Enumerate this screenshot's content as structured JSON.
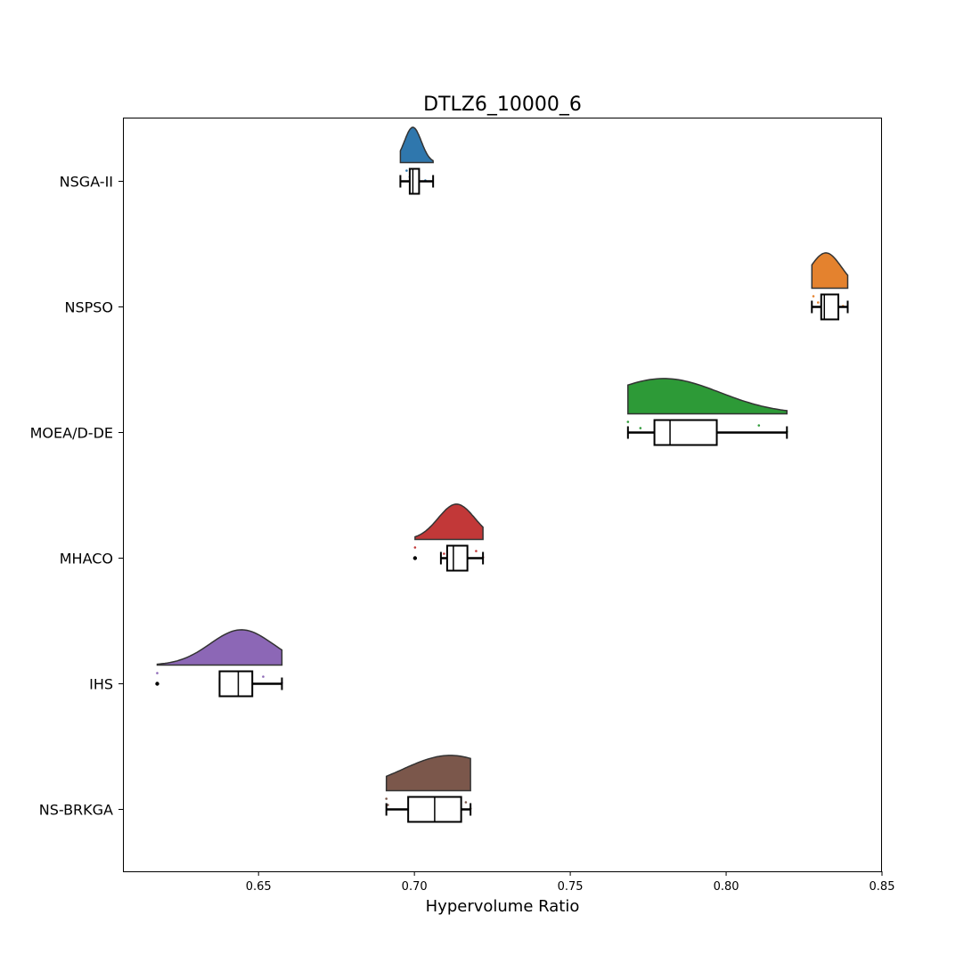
{
  "chart_data": {
    "type": "raincloud",
    "title": "DTLZ6_10000_6",
    "xlabel": "Hypervolume Ratio",
    "ylabel": "",
    "xlim": [
      0.6065,
      0.85
    ],
    "xticks": [
      "0.65",
      "0.70",
      "0.75",
      "0.80",
      "0.85"
    ],
    "grid": false,
    "series": [
      {
        "name": "NSGA-II",
        "color": "#2f77ad",
        "min": 0.6955,
        "q1": 0.6985,
        "median": 0.6995,
        "q3": 0.7015,
        "max": 0.706,
        "outliers": [],
        "kde_peak": 0.6995,
        "points": [
          0.6975,
          0.6985,
          0.6995,
          0.7005,
          0.7012,
          0.7035
        ]
      },
      {
        "name": "NSPSO",
        "color": "#e4822e",
        "min": 0.8275,
        "q1": 0.8305,
        "median": 0.8315,
        "q3": 0.836,
        "max": 0.839,
        "outliers": [],
        "kde_peak": 0.832,
        "points": [
          0.828,
          0.8295,
          0.831,
          0.8325,
          0.8345,
          0.8375
        ]
      },
      {
        "name": "MOEA/D-DE",
        "color": "#2d9a37",
        "min": 0.7685,
        "q1": 0.777,
        "median": 0.782,
        "q3": 0.797,
        "max": 0.8195,
        "outliers": [],
        "kde_peak": 0.78,
        "points": [
          0.7685,
          0.7725,
          0.781,
          0.7835,
          0.8105,
          0.8195
        ]
      },
      {
        "name": "MHACO",
        "color": "#c23838",
        "min": 0.7085,
        "q1": 0.7105,
        "median": 0.7125,
        "q3": 0.717,
        "max": 0.722,
        "outliers": [
          0.7002
        ],
        "kde_peak": 0.7135,
        "points": [
          0.7002,
          0.7095,
          0.7118,
          0.7135,
          0.7198,
          0.722
        ]
      },
      {
        "name": "IHS",
        "color": "#8c67b6",
        "min": 0.6375,
        "q1": 0.6375,
        "median": 0.6435,
        "q3": 0.648,
        "max": 0.6575,
        "outliers": [
          0.6175
        ],
        "kde_peak": 0.6445,
        "points": [
          0.6175,
          0.638,
          0.643,
          0.6455,
          0.6515,
          0.6575
        ]
      },
      {
        "name": "NS-BRKGA",
        "color": "#7b574b",
        "min": 0.691,
        "q1": 0.698,
        "median": 0.7065,
        "q3": 0.715,
        "max": 0.718,
        "outliers": [],
        "kde_peak": 0.7115,
        "points": [
          0.691,
          0.6915,
          0.7065,
          0.7135,
          0.7165,
          0.718
        ]
      }
    ]
  }
}
